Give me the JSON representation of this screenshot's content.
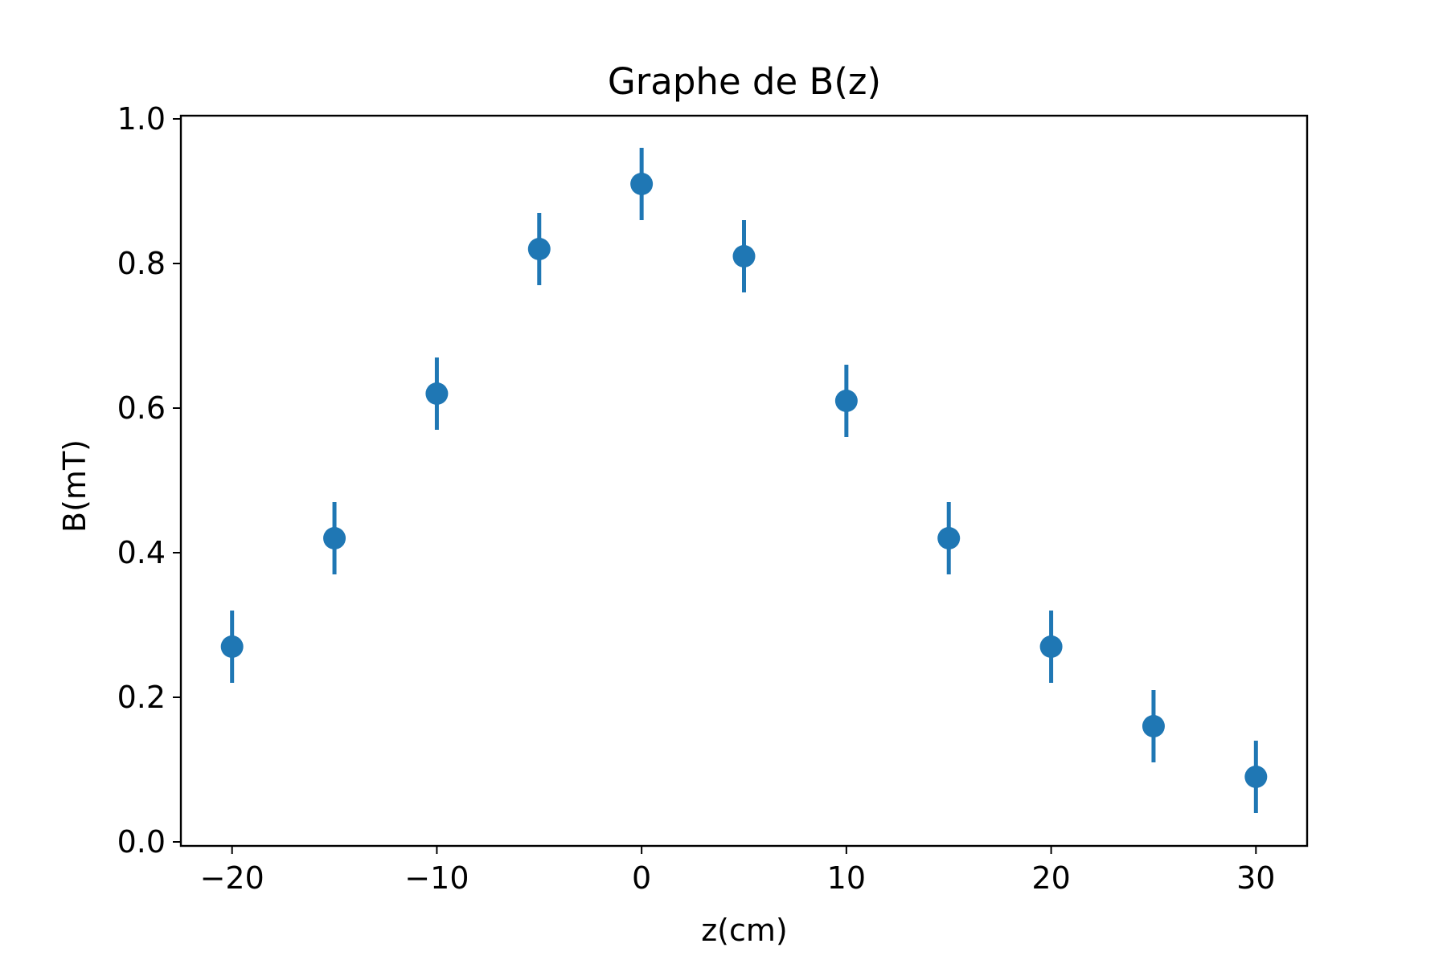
{
  "chart_data": {
    "type": "scatter",
    "title": "Graphe de B(z)",
    "xlabel": "z(cm)",
    "ylabel": "B(mT)",
    "xlim": [
      -22.5,
      32.5
    ],
    "ylim": [
      0.0,
      1.0
    ],
    "x_ticks": [
      -20,
      -10,
      0,
      10,
      20,
      30
    ],
    "x_tick_labels": [
      "−20",
      "−10",
      "0",
      "10",
      "20",
      "30"
    ],
    "y_ticks": [
      0.0,
      0.2,
      0.4,
      0.6,
      0.8,
      1.0
    ],
    "y_tick_labels": [
      "0.0",
      "0.2",
      "0.4",
      "0.6",
      "0.8",
      "1.0"
    ],
    "grid": false,
    "legend": "none",
    "color": "#1f77b4",
    "series": [
      {
        "x": [
          -20,
          -15,
          -10,
          -5,
          0,
          5,
          10,
          15,
          20,
          25,
          30
        ],
        "y": [
          0.27,
          0.42,
          0.62,
          0.82,
          0.91,
          0.81,
          0.61,
          0.42,
          0.27,
          0.16,
          0.09
        ],
        "yerr": [
          0.05,
          0.05,
          0.05,
          0.05,
          0.05,
          0.05,
          0.05,
          0.05,
          0.05,
          0.05,
          0.05
        ]
      }
    ]
  }
}
